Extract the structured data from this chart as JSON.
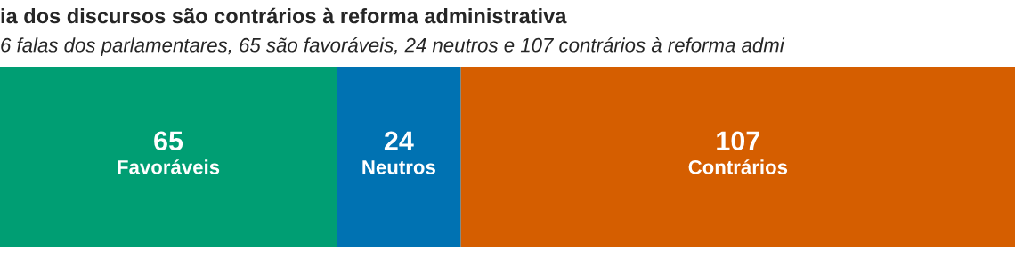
{
  "chart_data": {
    "type": "bar",
    "stacked": true,
    "orientation": "horizontal",
    "title": "ia dos discursos são contrários à reforma administrativa",
    "subtitle": "6 falas dos parlamentares, 65 são favoráveis, 24 neutros e 107 contrários à reforma admi",
    "categories": [
      null
    ],
    "xlim": [
      0,
      196
    ],
    "tick_labels": false,
    "data_labels": true,
    "grid": false,
    "legend": false,
    "series": [
      {
        "name": "Favoráveis",
        "color": "#009e73",
        "values": [
          65
        ]
      },
      {
        "name": "Neutros",
        "color": "#0072b2",
        "values": [
          24
        ]
      },
      {
        "name": "Contrários",
        "color": "#d55e00",
        "values": [
          107
        ]
      }
    ]
  }
}
